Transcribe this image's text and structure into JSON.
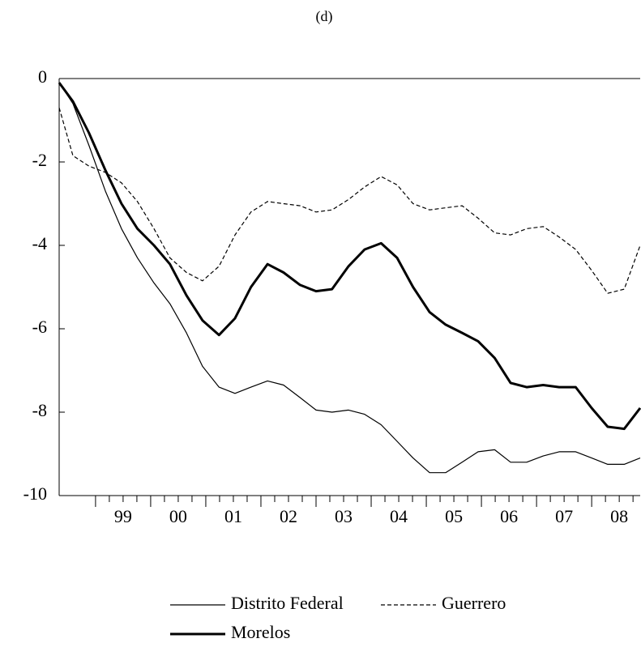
{
  "chart_data": {
    "type": "line",
    "title": "(d)",
    "x": [
      1998.34,
      1998.59,
      1998.88,
      1999.18,
      1999.47,
      1999.76,
      2000.06,
      2000.35,
      2000.65,
      2000.94,
      2001.24,
      2001.53,
      2001.82,
      2002.12,
      2002.41,
      2002.71,
      2003.0,
      2003.29,
      2003.59,
      2003.88,
      2004.18,
      2004.47,
      2004.76,
      2005.06,
      2005.35,
      2005.65,
      2005.94,
      2006.24,
      2006.53,
      2006.82,
      2007.12,
      2007.41,
      2007.71,
      2008.0,
      2008.29,
      2008.59,
      2008.88
    ],
    "series": [
      {
        "name": "Distrito Federal",
        "color": "#000000",
        "width": 1.2,
        "dash": "none",
        "values": [
          -0.1,
          -0.6,
          -1.6,
          -2.7,
          -3.6,
          -4.3,
          -4.9,
          -5.4,
          -6.1,
          -6.9,
          -7.4,
          -7.55,
          -7.4,
          -7.25,
          -7.35,
          -7.65,
          -7.95,
          -8.0,
          -7.95,
          -8.05,
          -8.3,
          -8.7,
          -9.1,
          -9.45,
          -9.45,
          -9.2,
          -8.95,
          -8.9,
          -9.2,
          -9.2,
          -9.05,
          -8.95,
          -8.95,
          -9.1,
          -9.25,
          -9.25,
          -9.1
        ]
      },
      {
        "name": "Guerrero",
        "color": "#000000",
        "width": 1.2,
        "dash": "5 3",
        "values": [
          -0.7,
          -1.85,
          -2.1,
          -2.25,
          -2.5,
          -2.95,
          -3.6,
          -4.3,
          -4.65,
          -4.85,
          -4.5,
          -3.75,
          -3.2,
          -2.95,
          -3.0,
          -3.05,
          -3.2,
          -3.15,
          -2.9,
          -2.6,
          -2.35,
          -2.55,
          -3.0,
          -3.15,
          -3.1,
          -3.05,
          -3.35,
          -3.7,
          -3.75,
          -3.6,
          -3.55,
          -3.8,
          -4.1,
          -4.6,
          -5.15,
          -5.05,
          -4.0
        ]
      },
      {
        "name": "Morelos",
        "color": "#000000",
        "width": 3,
        "dash": "none",
        "values": [
          -0.1,
          -0.55,
          -1.3,
          -2.2,
          -3.0,
          -3.6,
          -4.0,
          -4.45,
          -5.2,
          -5.8,
          -6.15,
          -5.75,
          -5.0,
          -4.45,
          -4.65,
          -4.95,
          -5.1,
          -5.05,
          -4.5,
          -4.1,
          -3.95,
          -4.3,
          -5.0,
          -5.6,
          -5.9,
          -6.1,
          -6.3,
          -6.7,
          -7.3,
          -7.4,
          -7.35,
          -7.4,
          -7.4,
          -7.9,
          -8.35,
          -8.4,
          -7.9
        ]
      }
    ],
    "xlim": [
      1998.34,
      2008.88
    ],
    "xticks": [
      {
        "value": 1999.5,
        "label": "99"
      },
      {
        "value": 2000.5,
        "label": "00"
      },
      {
        "value": 2001.5,
        "label": "01"
      },
      {
        "value": 2002.5,
        "label": "02"
      },
      {
        "value": 2003.5,
        "label": "03"
      },
      {
        "value": 2004.5,
        "label": "04"
      },
      {
        "value": 2005.5,
        "label": "05"
      },
      {
        "value": 2006.5,
        "label": "06"
      },
      {
        "value": 2007.5,
        "label": "07"
      },
      {
        "value": 2008.5,
        "label": "08"
      }
    ],
    "ylim": [
      -10,
      0
    ],
    "yticks": [
      -10,
      -8,
      -6,
      -4,
      -2,
      0
    ]
  }
}
